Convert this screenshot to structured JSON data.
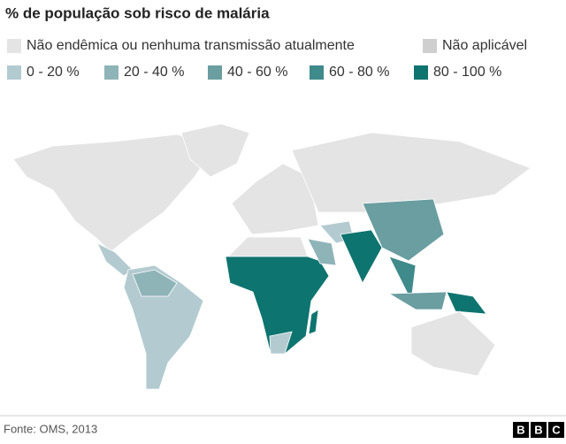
{
  "title": "% de população sob risco de malária",
  "legend": [
    {
      "label": "Não endêmica ou nenhuma transmissão atualmente",
      "color": "#e4e4e4"
    },
    {
      "label": "Não aplicável",
      "color": "#cfcfcf"
    },
    {
      "label": "0 - 20 %",
      "color": "#b3cbd0"
    },
    {
      "label": "20 - 40 %",
      "color": "#8fb4b8"
    },
    {
      "label": "40 - 60 %",
      "color": "#6a9ea1"
    },
    {
      "label": "60 - 80 %",
      "color": "#3f8a8b"
    },
    {
      "label": "80 - 100 %",
      "color": "#0e7470"
    }
  ],
  "source": "Fonte: OMS, 2013",
  "logo": [
    "B",
    "B",
    "C"
  ]
}
